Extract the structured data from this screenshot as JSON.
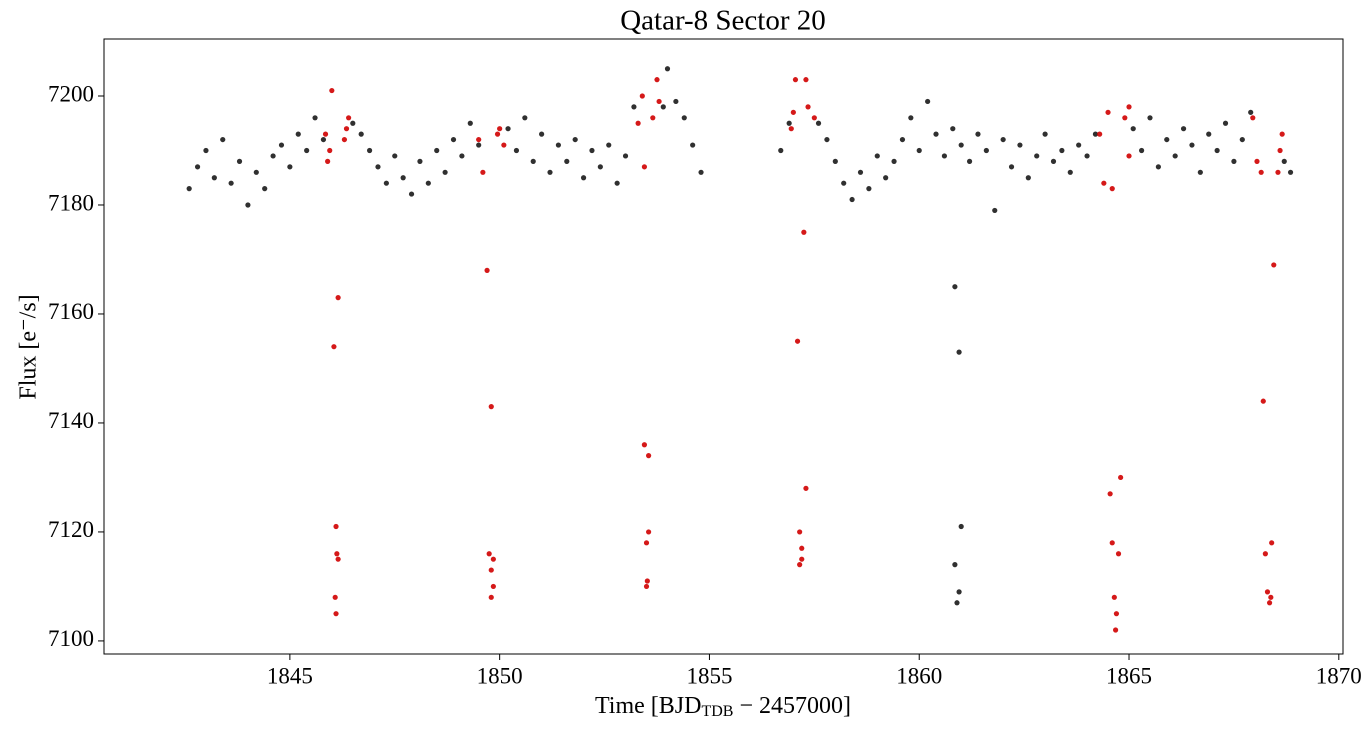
{
  "chart_data": {
    "type": "scatter",
    "title": "Qatar-8 Sector 20",
    "xlabel_parts": [
      "Time [BJD",
      "TDB",
      " − 2457000]"
    ],
    "ylabel": "Flux [e⁻/s]",
    "xlim": [
      1840.57,
      1870.1
    ],
    "ylim": [
      7097.6,
      7210.46
    ],
    "xticks": [
      1845,
      1850,
      1855,
      1860,
      1865,
      1870
    ],
    "yticks": [
      7100,
      7120,
      7140,
      7160,
      7180,
      7200
    ],
    "series": [
      {
        "color": "#1a1a1a",
        "x": [
          1842.6,
          1842.8,
          1843.0,
          1843.2,
          1843.4,
          1843.6,
          1843.8,
          1844.0,
          1844.2,
          1844.4,
          1844.6,
          1844.8,
          1845.0,
          1845.2,
          1845.4,
          1845.6,
          1845.8,
          1846.5,
          1846.7,
          1846.9,
          1847.1,
          1847.3,
          1847.5,
          1847.7,
          1847.9,
          1848.1,
          1848.3,
          1848.5,
          1848.7,
          1848.9,
          1849.1,
          1849.3,
          1849.5,
          1850.2,
          1850.4,
          1850.6,
          1850.8,
          1851.0,
          1851.2,
          1851.4,
          1851.6,
          1851.8,
          1852.0,
          1852.2,
          1852.4,
          1852.6,
          1852.8,
          1853.0,
          1853.2,
          1853.9,
          1854.0,
          1854.2,
          1854.4,
          1854.6,
          1854.8,
          1856.7,
          1856.9,
          1857.6,
          1857.8,
          1858.0,
          1858.2,
          1858.4,
          1858.6,
          1858.8,
          1859.0,
          1859.2,
          1859.4,
          1859.6,
          1859.8,
          1860.0,
          1860.2,
          1860.4,
          1860.6,
          1860.8,
          1861.0,
          1861.2,
          1861.4,
          1861.6,
          1861.8,
          1862.0,
          1862.2,
          1862.4,
          1862.6,
          1862.8,
          1863.0,
          1863.2,
          1863.4,
          1863.6,
          1863.8,
          1864.0,
          1864.2,
          1865.1,
          1865.3,
          1865.5,
          1865.7,
          1865.9,
          1866.1,
          1866.3,
          1866.5,
          1866.7,
          1866.9,
          1867.1,
          1867.3,
          1867.5,
          1867.7,
          1867.9,
          1868.7,
          1868.85,
          1860.85,
          1860.95,
          1861.0,
          1860.85,
          1860.95,
          1860.9
        ],
        "values": [
          7183,
          7187,
          7190,
          7185,
          7192,
          7184,
          7188,
          7180,
          7186,
          7183,
          7189,
          7191,
          7187,
          7193,
          7190,
          7196,
          7192,
          7195,
          7193,
          7190,
          7187,
          7184,
          7189,
          7185,
          7182,
          7188,
          7184,
          7190,
          7186,
          7192,
          7189,
          7195,
          7191,
          7194,
          7190,
          7196,
          7188,
          7193,
          7186,
          7191,
          7188,
          7192,
          7185,
          7190,
          7187,
          7191,
          7184,
          7189,
          7198,
          7198,
          7205,
          7199,
          7196,
          7191,
          7186,
          7190,
          7195,
          7195,
          7192,
          7188,
          7184,
          7181,
          7186,
          7183,
          7189,
          7185,
          7188,
          7192,
          7196,
          7190,
          7199,
          7193,
          7189,
          7194,
          7191,
          7188,
          7193,
          7190,
          7179,
          7192,
          7187,
          7191,
          7185,
          7189,
          7193,
          7188,
          7190,
          7186,
          7191,
          7189,
          7193,
          7194,
          7190,
          7196,
          7187,
          7192,
          7189,
          7194,
          7191,
          7186,
          7193,
          7190,
          7195,
          7188,
          7192,
          7197,
          7188,
          7186,
          7165,
          7153,
          7121,
          7114,
          7109,
          7107
        ]
      },
      {
        "color": "#d00000",
        "x": [
          1845.85,
          1845.95,
          1846.0,
          1846.05,
          1846.1,
          1846.15,
          1846.12,
          1846.08,
          1846.1,
          1846.15,
          1846.3,
          1846.4,
          1846.35,
          1845.9,
          1849.5,
          1849.6,
          1849.7,
          1849.75,
          1849.8,
          1849.8,
          1849.85,
          1849.8,
          1849.85,
          1850.0,
          1850.1,
          1849.95,
          1853.3,
          1853.4,
          1853.45,
          1853.5,
          1853.55,
          1853.55,
          1853.5,
          1853.52,
          1853.45,
          1853.65,
          1853.75,
          1853.8,
          1857.0,
          1857.05,
          1857.1,
          1857.15,
          1857.2,
          1857.15,
          1857.2,
          1857.25,
          1857.3,
          1857.3,
          1857.35,
          1857.5,
          1856.95,
          1864.3,
          1864.4,
          1864.5,
          1864.55,
          1864.6,
          1864.65,
          1864.7,
          1864.68,
          1864.75,
          1864.8,
          1864.6,
          1864.9,
          1865.0,
          1865.0,
          1867.95,
          1868.05,
          1868.15,
          1868.2,
          1868.25,
          1868.3,
          1868.35,
          1868.38,
          1868.4,
          1868.45,
          1868.55,
          1868.65,
          1868.6
        ],
        "values": [
          7193,
          7190,
          7201,
          7154,
          7121,
          7163,
          7116,
          7108,
          7105,
          7115,
          7192,
          7196,
          7194,
          7188,
          7192,
          7186,
          7168,
          7116,
          7143,
          7113,
          7110,
          7108,
          7115,
          7194,
          7191,
          7193,
          7195,
          7200,
          7136,
          7118,
          7134,
          7120,
          7110,
          7111,
          7187,
          7196,
          7203,
          7199,
          7197,
          7203,
          7155,
          7120,
          7117,
          7114,
          7115,
          7175,
          7128,
          7203,
          7198,
          7196,
          7194,
          7193,
          7184,
          7197,
          7127,
          7118,
          7108,
          7105,
          7102,
          7116,
          7130,
          7183,
          7196,
          7198,
          7189,
          7196,
          7188,
          7186,
          7144,
          7116,
          7109,
          7107,
          7108,
          7118,
          7169,
          7186,
          7193,
          7190
        ]
      }
    ]
  }
}
